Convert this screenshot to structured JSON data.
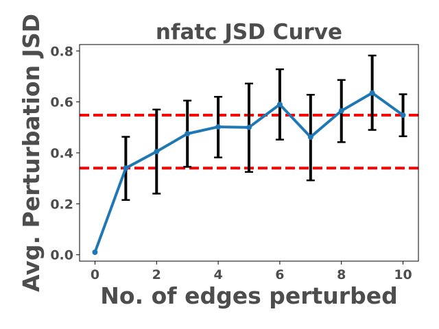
{
  "chart_data": {
    "type": "line",
    "title": "nfatc JSD Curve",
    "xlabel": "No. of edges perturbed",
    "ylabel": "Avg. Perturbation JSD",
    "xlim": [
      -0.5,
      10.5
    ],
    "ylim": [
      -0.025,
      0.825
    ],
    "xticks": [
      0,
      2,
      4,
      6,
      8,
      10
    ],
    "xtick_labels": [
      "0",
      "2",
      "4",
      "6",
      "8",
      "10"
    ],
    "yticks": [
      0.0,
      0.2,
      0.4,
      0.6,
      0.8
    ],
    "ytick_labels": [
      "0.0",
      "0.2",
      "0.4",
      "0.6",
      "0.8"
    ],
    "grid": false,
    "series": [
      {
        "color": "#1f77b4",
        "x": [
          0,
          1,
          2,
          3,
          4,
          5,
          6,
          7,
          8,
          9,
          10
        ],
        "y": [
          0.01,
          0.34,
          0.405,
          0.475,
          0.502,
          0.5,
          0.59,
          0.462,
          0.565,
          0.635,
          0.548
        ],
        "error_low": [
          0.01,
          0.215,
          0.24,
          0.345,
          0.382,
          0.325,
          0.452,
          0.292,
          0.442,
          0.49,
          0.465
        ],
        "error_high": [
          0.01,
          0.463,
          0.57,
          0.605,
          0.62,
          0.672,
          0.728,
          0.628,
          0.686,
          0.782,
          0.63
        ],
        "error_color": "#000000"
      }
    ],
    "hlines": [
      {
        "y": 0.548,
        "color": "#ff0000",
        "style": "dashed"
      },
      {
        "y": 0.34,
        "color": "#ff0000",
        "style": "dashed"
      }
    ]
  }
}
